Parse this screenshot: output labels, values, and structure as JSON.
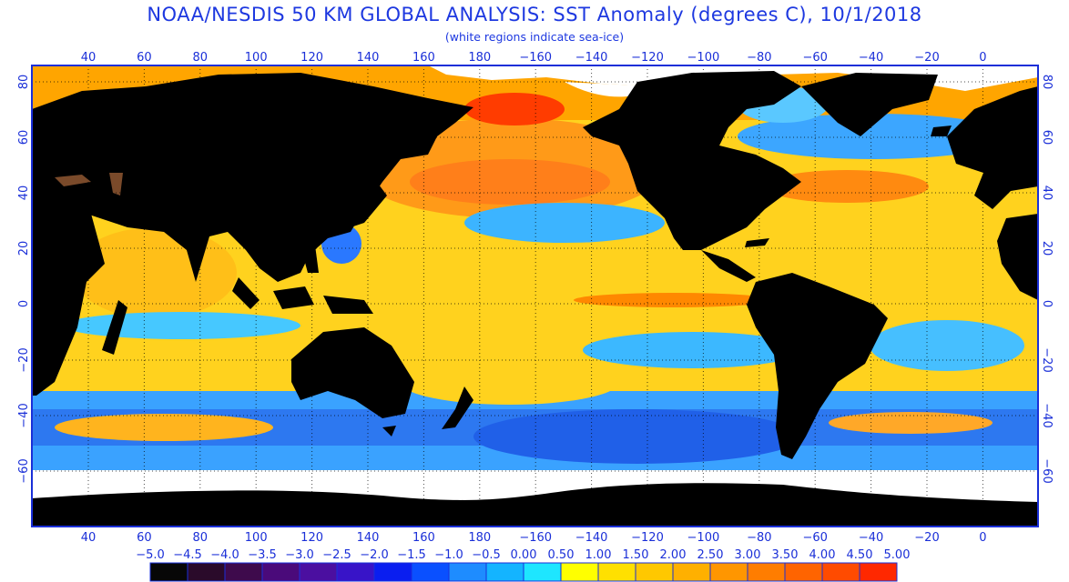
{
  "title": "NOAA/NESDIS 50 KM GLOBAL ANALYSIS: SST Anomaly (degrees C), 10/1/2018",
  "subtitle": "(white regions indicate sea-ice)",
  "map": {
    "lon_ticks_top": [
      "40",
      "60",
      "80",
      "100",
      "120",
      "140",
      "160",
      "180",
      "−160",
      "−140",
      "−120",
      "−100",
      "−80",
      "−60",
      "−40",
      "−20",
      "0"
    ],
    "lon_ticks_bottom": [
      "40",
      "60",
      "80",
      "100",
      "120",
      "140",
      "160",
      "180",
      "−160",
      "−140",
      "−120",
      "−100",
      "−80",
      "−60",
      "−40",
      "−20",
      "0"
    ],
    "lat_ticks_left": [
      "80",
      "60",
      "40",
      "20",
      "0",
      "−20",
      "−40",
      "−60"
    ],
    "lat_ticks_right": [
      "80",
      "60",
      "40",
      "20",
      "0",
      "−20",
      "−40",
      "−60"
    ],
    "colors": {
      "land": "#000000",
      "sea_ice": "#ffffff",
      "frame": "#1a2fd8",
      "grid": "#000000"
    }
  },
  "colorbar": {
    "labels": [
      "−5.0",
      "−4.5",
      "−4.0",
      "−3.5",
      "−3.0",
      "−2.5",
      "−2.0",
      "−1.5",
      "−1.0",
      "−0.5",
      "0.00",
      "0.50",
      "1.00",
      "1.50",
      "2.00",
      "2.50",
      "3.00",
      "3.50",
      "4.00",
      "4.50",
      "5.00"
    ],
    "colors": [
      "#070707",
      "#2a0a2a",
      "#3e0a4c",
      "#4a0a7a",
      "#4b0fa0",
      "#3814c8",
      "#0a1ef0",
      "#0a50ff",
      "#1e8cff",
      "#14b4ff",
      "#1ee6ff",
      "#ffff00",
      "#ffe000",
      "#ffc800",
      "#ffb000",
      "#ff9600",
      "#ff7d00",
      "#ff6400",
      "#ff4b00",
      "#ff2800"
    ]
  }
}
